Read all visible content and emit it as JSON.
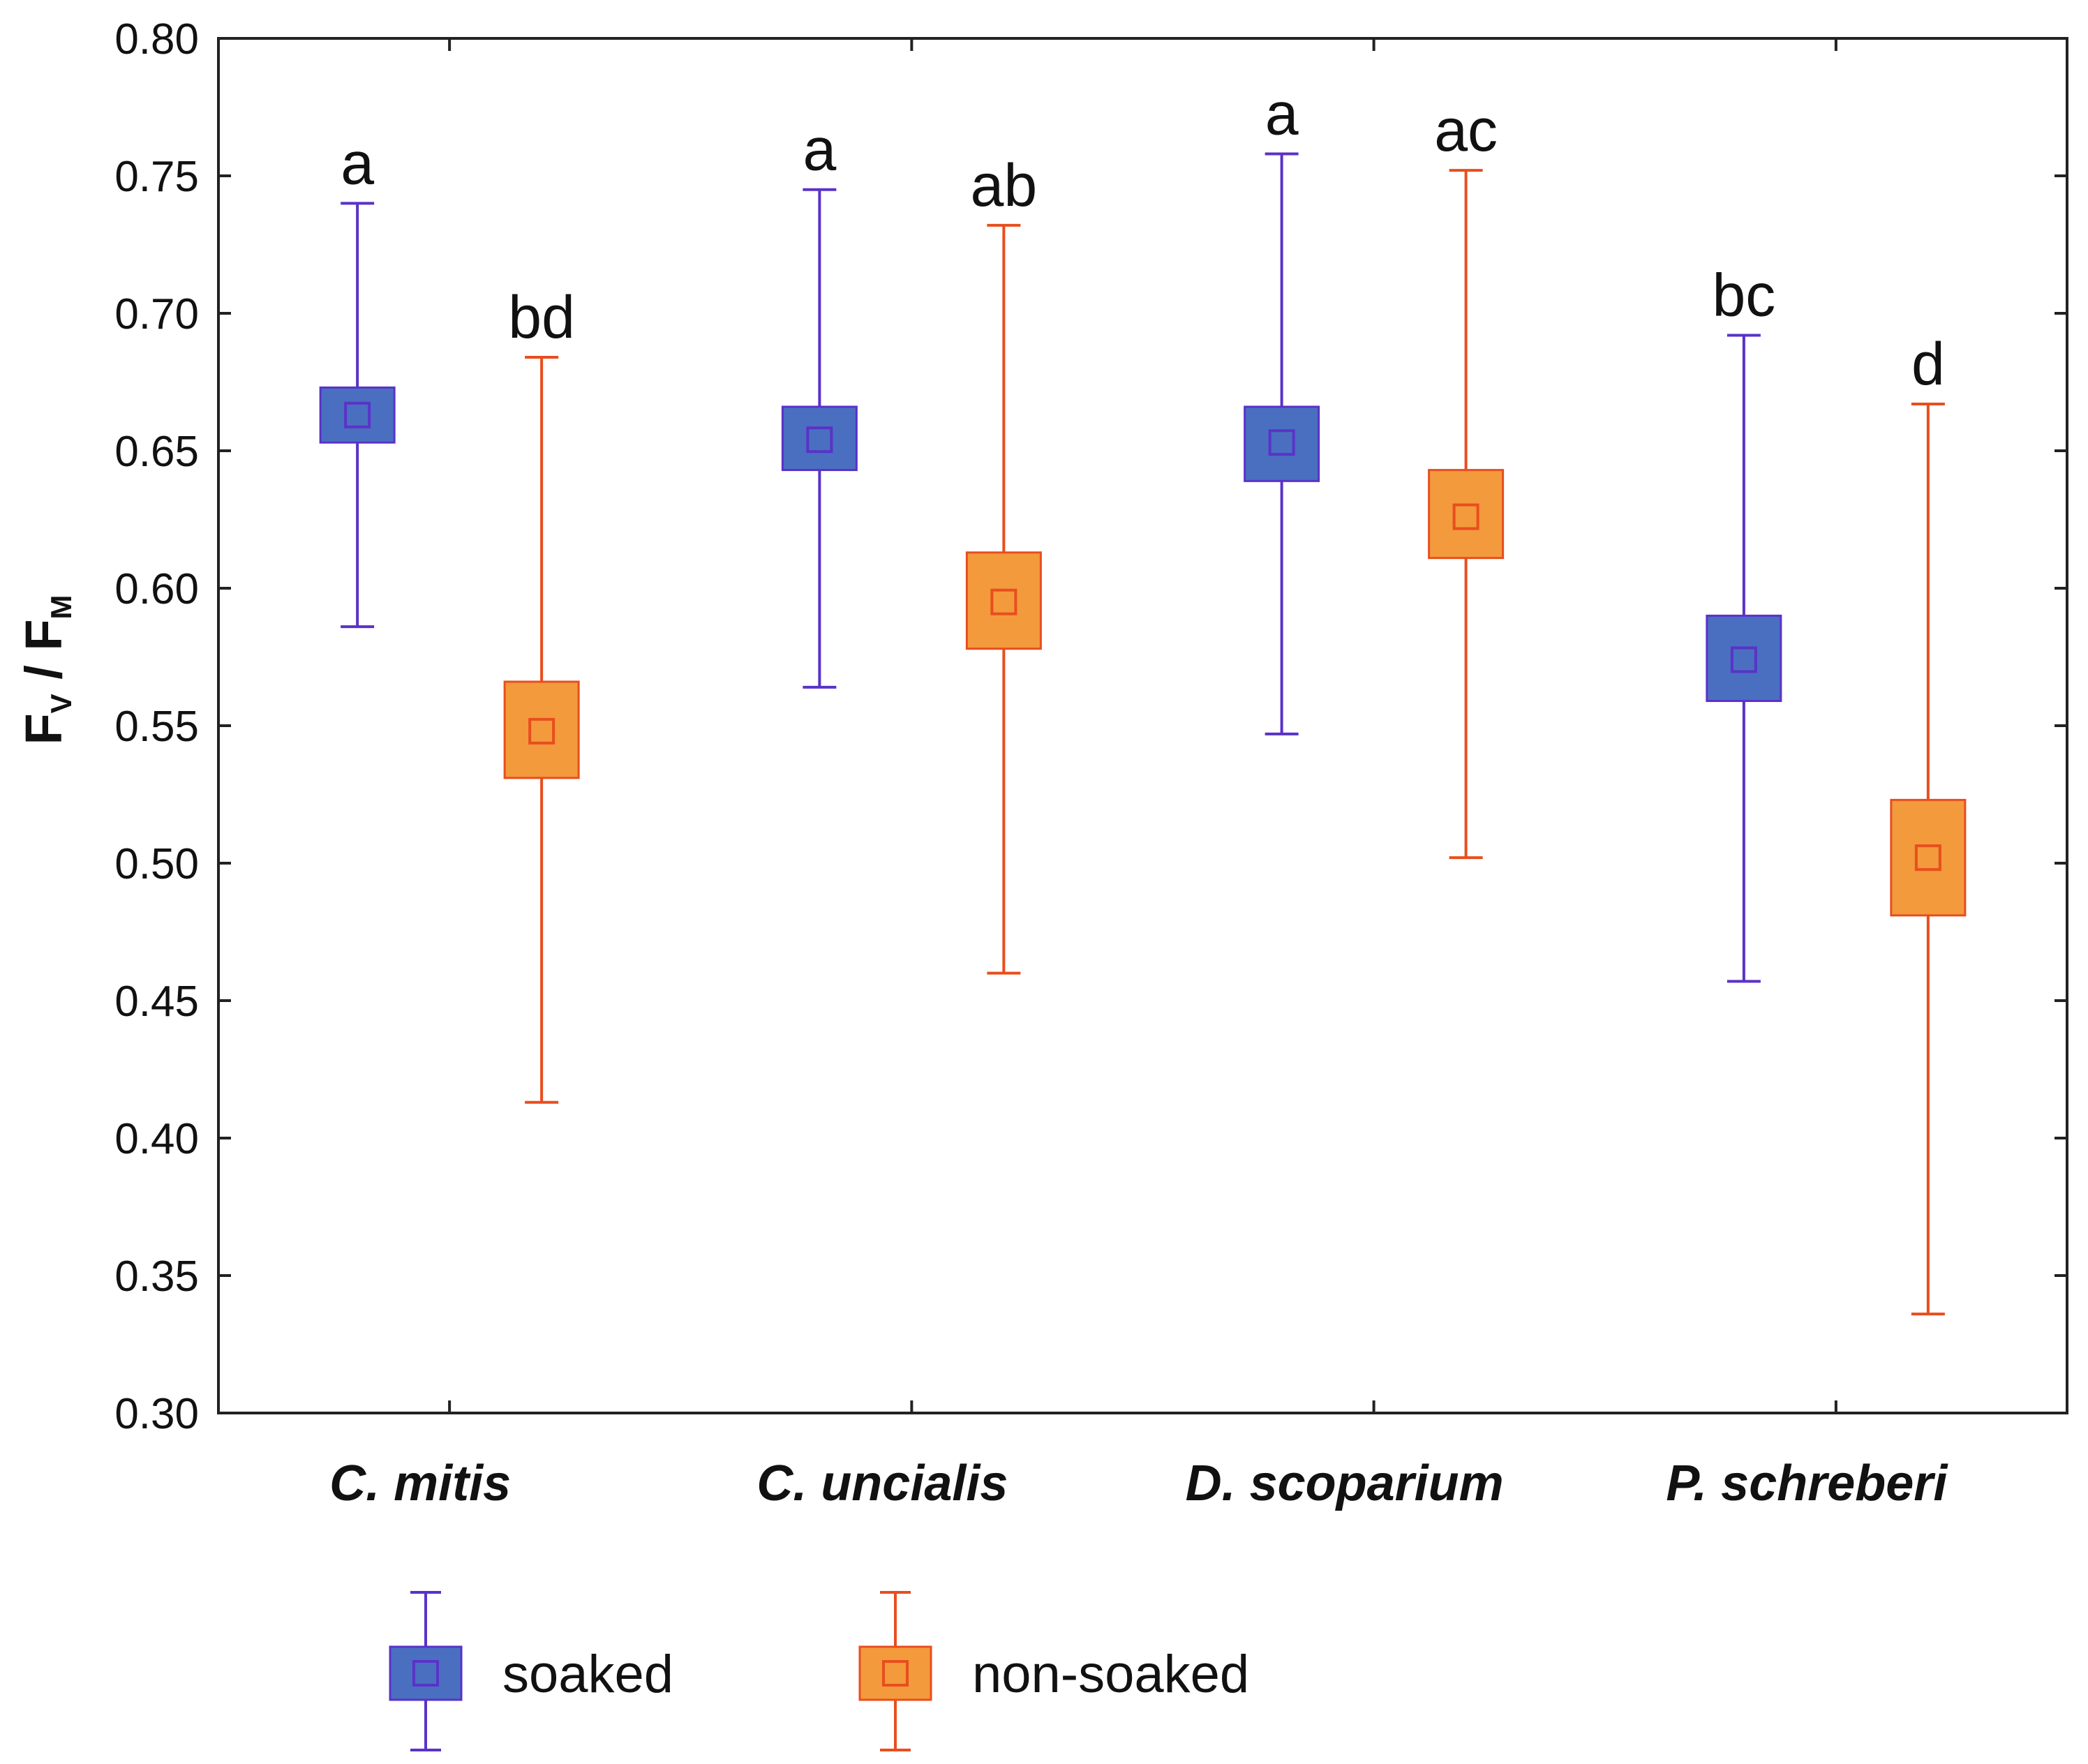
{
  "chart_data": {
    "type": "box",
    "ylabel": {
      "main1": "F",
      "sub1": "V",
      "sep": " / ",
      "main2": "F",
      "sub2": "M"
    },
    "ylim": [
      0.3,
      0.8
    ],
    "yticks": [
      "0.30",
      "0.35",
      "0.40",
      "0.45",
      "0.50",
      "0.55",
      "0.60",
      "0.65",
      "0.70",
      "0.75",
      "0.80"
    ],
    "categories": [
      "C. mitis",
      "C. uncialis",
      "D. scoparium",
      "P. schreberi"
    ],
    "series": [
      {
        "name": "soaked",
        "color_fill": "#4a6fc0",
        "color_line": "#5a32c8",
        "points": [
          {
            "mean": 0.663,
            "box_low": 0.653,
            "box_high": 0.673,
            "whisker_low": 0.586,
            "whisker_high": 0.74,
            "letter": "a"
          },
          {
            "mean": 0.654,
            "box_low": 0.643,
            "box_high": 0.666,
            "whisker_low": 0.564,
            "whisker_high": 0.745,
            "letter": "a"
          },
          {
            "mean": 0.653,
            "box_low": 0.639,
            "box_high": 0.666,
            "whisker_low": 0.547,
            "whisker_high": 0.758,
            "letter": "a"
          },
          {
            "mean": 0.574,
            "box_low": 0.559,
            "box_high": 0.59,
            "whisker_low": 0.457,
            "whisker_high": 0.692,
            "letter": "bc"
          }
        ]
      },
      {
        "name": "non-soaked",
        "color_fill": "#f39a3c",
        "color_line": "#e84e1e",
        "points": [
          {
            "mean": 0.548,
            "box_low": 0.531,
            "box_high": 0.566,
            "whisker_low": 0.413,
            "whisker_high": 0.684,
            "letter": "bd"
          },
          {
            "mean": 0.595,
            "box_low": 0.578,
            "box_high": 0.613,
            "whisker_low": 0.46,
            "whisker_high": 0.732,
            "letter": "ab"
          },
          {
            "mean": 0.626,
            "box_low": 0.611,
            "box_high": 0.643,
            "whisker_low": 0.502,
            "whisker_high": 0.752,
            "letter": "ac"
          },
          {
            "mean": 0.502,
            "box_low": 0.481,
            "box_high": 0.523,
            "whisker_low": 0.336,
            "whisker_high": 0.667,
            "letter": "d"
          }
        ]
      }
    ],
    "legend": [
      "soaked",
      "non-soaked"
    ],
    "legend_position": "bottom"
  }
}
